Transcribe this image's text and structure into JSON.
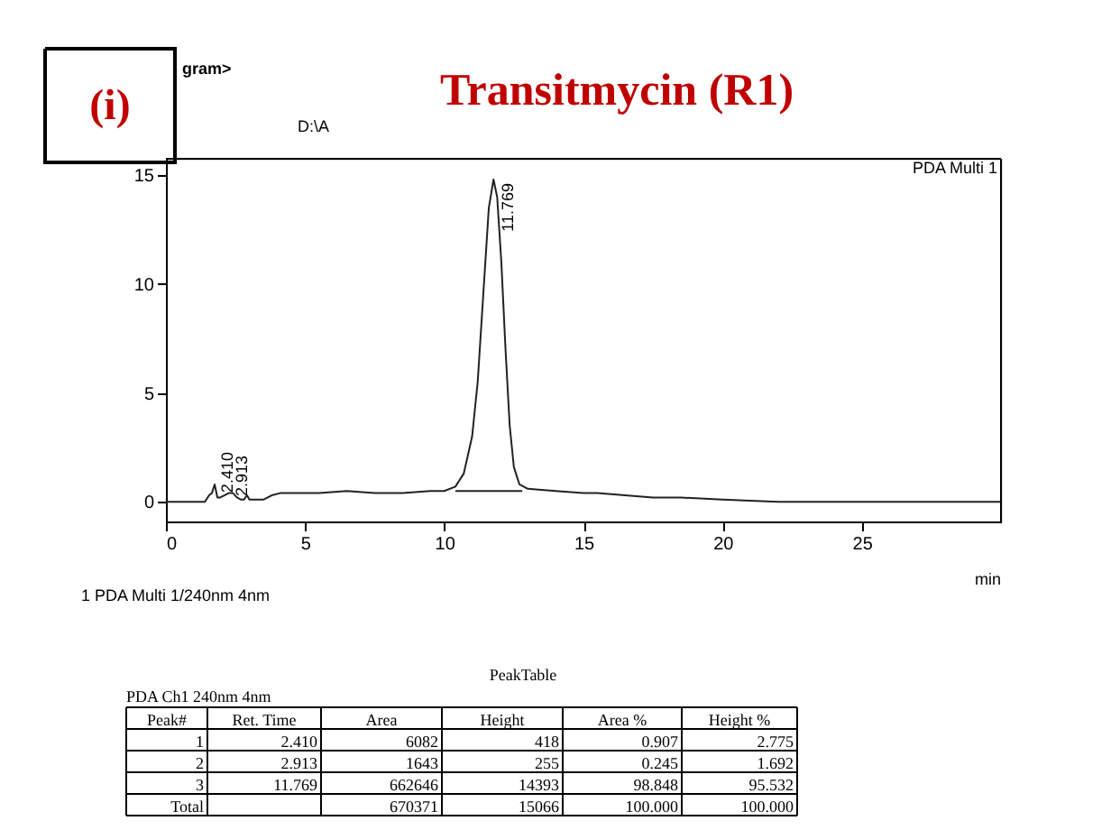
{
  "chart_data": {
    "type": "line",
    "title": "Transitmycin (R1)",
    "xlabel": "min",
    "xlim": [
      0,
      30
    ],
    "xticks": [
      0,
      5,
      10,
      15,
      20,
      25
    ],
    "ylim": [
      -0.9,
      15.75
    ],
    "yticks": [
      0,
      5,
      10,
      15
    ],
    "grid": false,
    "series": [
      {
        "color": "#222222",
        "x": [
          0,
          0.5,
          1.0,
          1.4,
          1.55,
          1.65,
          1.75,
          1.85,
          1.95,
          2.1,
          2.25,
          2.41,
          2.55,
          2.7,
          2.8,
          2.913,
          3.0,
          3.2,
          3.5,
          3.8,
          4.1,
          4.5,
          5.5,
          6.5,
          7.5,
          8.5,
          9.5,
          10.0,
          10.4,
          10.7,
          11.0,
          11.2,
          11.4,
          11.6,
          11.769,
          11.9,
          12.05,
          12.2,
          12.35,
          12.5,
          12.7,
          13.0,
          14.0,
          15.0,
          15.5,
          16.5,
          17.5,
          18.5,
          20.0,
          22.0,
          25.0,
          28.0,
          30.0
        ],
        "values": [
          0,
          0,
          0,
          0,
          0.3,
          0.4,
          0.8,
          0.2,
          0.2,
          0.3,
          0.4,
          0.4,
          0.2,
          0.1,
          0.1,
          0.3,
          0.1,
          0.1,
          0.1,
          0.3,
          0.4,
          0.4,
          0.4,
          0.5,
          0.4,
          0.4,
          0.5,
          0.5,
          0.7,
          1.3,
          3.0,
          5.5,
          9.5,
          13.5,
          14.8,
          14.0,
          11.0,
          7.0,
          3.5,
          1.6,
          0.8,
          0.6,
          0.5,
          0.4,
          0.4,
          0.3,
          0.2,
          0.2,
          0.1,
          0,
          0,
          0,
          0
        ]
      },
      {
        "color": "#222222",
        "x": [
          10.4,
          12.8
        ],
        "values": [
          0.5,
          0.5
        ]
      }
    ],
    "annotations": [
      {
        "text": "2.410",
        "x": 2.41,
        "y": 0.42
      },
      {
        "text": "2.913",
        "x": 2.913,
        "y": 0.26
      },
      {
        "text": "11.769",
        "x": 11.769,
        "y": 14.8
      },
      "(i)",
      "gram>",
      "D:\\A",
      "PDA Multi 1",
      "1 PDA Multi 1/240nm 4nm",
      "PeakTable",
      "PDA Ch1 240nm 4nm",
      "Peak#",
      "Ret. Time",
      "Area",
      "Height",
      "Area %",
      "Height %",
      "1",
      "2.410",
      "6082",
      "418",
      "0.907",
      "2.775",
      "2",
      "2.913",
      "1643",
      "255",
      "0.245",
      "1.692",
      "3",
      "11.769",
      "662646",
      "14393",
      "98.848",
      "95.532",
      "Total",
      null,
      "670371",
      "15066",
      "100.000",
      "100.000"
    ]
  }
}
